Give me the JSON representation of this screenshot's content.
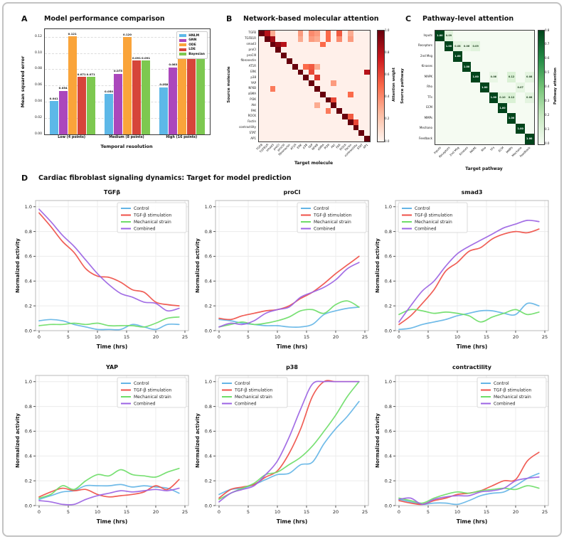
{
  "figure_title": "Multi-panel model figure",
  "chart_data": [
    {
      "id": "model-performance",
      "type": "bar",
      "panel_label": "A",
      "title": "Model performance comparison",
      "xlabel": "Temporal resolution",
      "ylabel": "Mean squared error",
      "ylim": [
        0,
        0.13
      ],
      "yticks": [
        0,
        0.02,
        0.04,
        0.06,
        0.08,
        0.1,
        0.12
      ],
      "grid": "dashed-horizontal",
      "legend_position": "upper-right",
      "categories": [
        "Low (4 points)",
        "Medium (8 points)",
        "High (16 points)"
      ],
      "series": [
        {
          "name": "HNLM",
          "color": "#5db8e8",
          "values": [
            0.041,
            0.05,
            0.058
          ]
        },
        {
          "name": "GNN",
          "color": "#ab47bc",
          "values": [
            0.054,
            0.075,
            0.083
          ]
        },
        {
          "name": "ODE",
          "color": "#faa43a",
          "values": [
            0.121,
            0.12,
            0.121
          ]
        },
        {
          "name": "LDE",
          "color": "#d6453a",
          "values": [
            0.071,
            0.091,
            0.096
          ]
        },
        {
          "name": "Bayesian",
          "color": "#7dc850",
          "values": [
            0.071,
            0.091,
            0.095
          ]
        }
      ]
    },
    {
      "id": "molecular-attention",
      "type": "heatmap",
      "panel_label": "B",
      "title": "Network-based molecular attention",
      "xlabel": "Target molecule",
      "ylabel": "Source molecule",
      "colorbar_label": "Attention weight",
      "colorbar_ticks": [
        1.0,
        0.8,
        0.6,
        0.4,
        0.2,
        0.0
      ],
      "colormap": "Reds",
      "vmax": 1.0,
      "annotate": false,
      "labels": [
        "TGFB",
        "TGFB1R",
        "smad3",
        "proCI",
        "proCIII",
        "fibronectin",
        "AT1R",
        "ERK",
        "p38",
        "YAP",
        "NFKB",
        "aSMA",
        "PI3K",
        "Akt",
        "FAK",
        "ROCK",
        "Factin",
        "contractility",
        "STAT",
        "AP1"
      ],
      "diagonal": 1.0,
      "background_value": 0.02,
      "cells": [
        {
          "r": 0,
          "c": 1,
          "v": 0.8
        },
        {
          "r": 0,
          "c": 2,
          "v": 0.3
        },
        {
          "r": 0,
          "c": 7,
          "v": 0.35
        },
        {
          "r": 0,
          "c": 9,
          "v": 0.4
        },
        {
          "r": 0,
          "c": 10,
          "v": 0.35
        },
        {
          "r": 0,
          "c": 12,
          "v": 0.5
        },
        {
          "r": 0,
          "c": 14,
          "v": 0.55
        },
        {
          "r": 0,
          "c": 16,
          "v": 0.3
        },
        {
          "r": 1,
          "c": 2,
          "v": 0.85
        },
        {
          "r": 1,
          "c": 7,
          "v": 0.3
        },
        {
          "r": 1,
          "c": 9,
          "v": 0.35
        },
        {
          "r": 1,
          "c": 10,
          "v": 0.3
        },
        {
          "r": 1,
          "c": 12,
          "v": 0.5
        },
        {
          "r": 1,
          "c": 14,
          "v": 0.4
        },
        {
          "r": 1,
          "c": 16,
          "v": 0.35
        },
        {
          "r": 2,
          "c": 3,
          "v": 0.9
        },
        {
          "r": 2,
          "c": 4,
          "v": 0.8
        },
        {
          "r": 2,
          "c": 11,
          "v": 0.5
        },
        {
          "r": 6,
          "c": 8,
          "v": 0.5
        },
        {
          "r": 6,
          "c": 9,
          "v": 0.55
        },
        {
          "r": 6,
          "c": 10,
          "v": 0.3
        },
        {
          "r": 7,
          "c": 9,
          "v": 0.6
        },
        {
          "r": 7,
          "c": 19,
          "v": 0.8
        },
        {
          "r": 8,
          "c": 10,
          "v": 0.65
        },
        {
          "r": 9,
          "c": 13,
          "v": 0.35
        },
        {
          "r": 10,
          "c": 2,
          "v": 0.45
        },
        {
          "r": 11,
          "c": 16,
          "v": 0.5
        },
        {
          "r": 12,
          "c": 13,
          "v": 0.6
        },
        {
          "r": 13,
          "c": 10,
          "v": 0.3
        },
        {
          "r": 14,
          "c": 12,
          "v": 0.45
        },
        {
          "r": 15,
          "c": 16,
          "v": 0.55
        },
        {
          "r": 16,
          "c": 17,
          "v": 0.6
        }
      ]
    },
    {
      "id": "pathway-attention",
      "type": "heatmap",
      "panel_label": "C",
      "title": "Pathway-level attention",
      "xlabel": "Target pathway",
      "ylabel": "Source pathway",
      "colorbar_label": "Pathway attention",
      "colorbar_ticks": [
        0.8,
        0.7,
        0.6,
        0.5,
        0.4,
        0.3,
        0.2,
        0.1,
        0.0
      ],
      "colormap": "Greens",
      "vmax": 0.8,
      "annotate": true,
      "labels": [
        "Inputs",
        "Receptors",
        "2nd Msg",
        "Kinases",
        "MAPK",
        "Rho",
        "TFs",
        "ECM",
        "MMPs",
        "Mechano",
        "Feedback"
      ],
      "diagonal": 1.0,
      "diagonal_text": "1.00",
      "background_value": 0.01,
      "cells": [
        {
          "r": 0,
          "c": 1,
          "v": 0.09
        },
        {
          "r": 1,
          "c": 2,
          "v": 0.08
        },
        {
          "r": 1,
          "c": 3,
          "v": 0.06
        },
        {
          "r": 1,
          "c": 4,
          "v": 0.09
        },
        {
          "r": 4,
          "c": 6,
          "v": 0.06
        },
        {
          "r": 4,
          "c": 8,
          "v": 0.12
        },
        {
          "r": 4,
          "c": 10,
          "v": 0.08
        },
        {
          "r": 5,
          "c": 9,
          "v": 0.07
        },
        {
          "r": 6,
          "c": 7,
          "v": 0.1
        },
        {
          "r": 6,
          "c": 8,
          "v": 0.12
        },
        {
          "r": 6,
          "c": 10,
          "v": 0.08
        }
      ]
    },
    {
      "id": "signaling-dynamics",
      "type": "line",
      "panel_label": "D",
      "title": "Cardiac fibroblast signaling dynamics: Target for model prediction",
      "xlabel": "Time (hrs)",
      "ylabel": "Normalized activity",
      "xlim": [
        0,
        25
      ],
      "ylim": [
        0,
        1.05
      ],
      "xticks": [
        0,
        5,
        10,
        15,
        20,
        25
      ],
      "yticks": [
        0,
        0.2,
        0.4,
        0.6,
        0.8,
        1.0
      ],
      "grid": "light",
      "x": [
        0,
        2,
        4,
        6,
        8,
        10,
        12,
        14,
        16,
        18,
        20,
        22,
        24
      ],
      "conditions": [
        {
          "name": "Control",
          "color": "#64b5e6"
        },
        {
          "name": "TGF-β stimulation",
          "color": "#ef5048"
        },
        {
          "name": "Mechanical strain",
          "color": "#6edd68"
        },
        {
          "name": "Combined",
          "color": "#9b63e3"
        }
      ],
      "subplots": [
        {
          "title": "TGFβ",
          "legend": "upper-right",
          "values": [
            [
              0.08,
              0.09,
              0.08,
              0.05,
              0.03,
              0.01,
              0.01,
              0.01,
              0.05,
              0.03,
              0.01,
              0.05,
              0.05
            ],
            [
              0.95,
              0.84,
              0.72,
              0.63,
              0.5,
              0.44,
              0.43,
              0.39,
              0.33,
              0.31,
              0.23,
              0.21,
              0.2
            ],
            [
              0.04,
              0.05,
              0.05,
              0.06,
              0.05,
              0.06,
              0.04,
              0.04,
              0.04,
              0.03,
              0.06,
              0.1,
              0.11
            ],
            [
              0.98,
              0.88,
              0.77,
              0.68,
              0.57,
              0.46,
              0.37,
              0.3,
              0.27,
              0.23,
              0.22,
              0.16,
              0.18
            ]
          ]
        },
        {
          "title": "proCI",
          "legend": "upper-right",
          "values": [
            [
              0.09,
              0.08,
              0.06,
              0.05,
              0.04,
              0.04,
              0.03,
              0.03,
              0.05,
              0.13,
              0.16,
              0.18,
              0.19
            ],
            [
              0.1,
              0.09,
              0.12,
              0.14,
              0.16,
              0.17,
              0.2,
              0.26,
              0.31,
              0.38,
              0.46,
              0.53,
              0.6
            ],
            [
              0.03,
              0.05,
              0.07,
              0.05,
              0.06,
              0.08,
              0.11,
              0.16,
              0.17,
              0.14,
              0.21,
              0.24,
              0.19
            ],
            [
              0.03,
              0.06,
              0.05,
              0.08,
              0.14,
              0.17,
              0.19,
              0.27,
              0.31,
              0.35,
              0.41,
              0.5,
              0.55
            ]
          ]
        },
        {
          "title": "smad3",
          "legend": "upper-left",
          "values": [
            [
              0.01,
              0.02,
              0.05,
              0.07,
              0.09,
              0.12,
              0.14,
              0.16,
              0.16,
              0.14,
              0.13,
              0.22,
              0.2
            ],
            [
              0.05,
              0.12,
              0.22,
              0.33,
              0.48,
              0.55,
              0.64,
              0.67,
              0.74,
              0.78,
              0.8,
              0.79,
              0.82
            ],
            [
              0.13,
              0.17,
              0.16,
              0.14,
              0.15,
              0.14,
              0.12,
              0.07,
              0.11,
              0.14,
              0.17,
              0.13,
              0.15
            ],
            [
              0.07,
              0.2,
              0.32,
              0.4,
              0.52,
              0.62,
              0.68,
              0.73,
              0.78,
              0.83,
              0.86,
              0.89,
              0.88
            ]
          ]
        },
        {
          "title": "YAP",
          "legend": "upper-right",
          "values": [
            [
              0.05,
              0.08,
              0.11,
              0.12,
              0.16,
              0.16,
              0.16,
              0.17,
              0.15,
              0.16,
              0.15,
              0.14,
              0.1
            ],
            [
              0.07,
              0.11,
              0.14,
              0.12,
              0.13,
              0.09,
              0.07,
              0.08,
              0.09,
              0.11,
              0.16,
              0.13,
              0.21
            ],
            [
              0.06,
              0.09,
              0.16,
              0.13,
              0.2,
              0.25,
              0.24,
              0.29,
              0.25,
              0.24,
              0.23,
              0.27,
              0.3
            ],
            [
              0.04,
              0.03,
              0.01,
              0.01,
              0.05,
              0.08,
              0.1,
              0.12,
              0.11,
              0.12,
              0.13,
              0.12,
              0.14
            ]
          ]
        },
        {
          "title": "p38",
          "legend": "upper-left",
          "values": [
            [
              0.09,
              0.13,
              0.14,
              0.17,
              0.21,
              0.25,
              0.26,
              0.33,
              0.35,
              0.5,
              0.62,
              0.72,
              0.84
            ],
            [
              0.06,
              0.13,
              0.15,
              0.17,
              0.23,
              0.28,
              0.42,
              0.62,
              0.88,
              1.0,
              1.0,
              1.0,
              1.0
            ],
            [
              0.05,
              0.1,
              0.14,
              0.18,
              0.25,
              0.27,
              0.33,
              0.39,
              0.48,
              0.6,
              0.73,
              0.88,
              1.0
            ],
            [
              0.03,
              0.1,
              0.13,
              0.16,
              0.25,
              0.36,
              0.55,
              0.78,
              0.98,
              1.0,
              1.0,
              1.0,
              1.0
            ]
          ]
        },
        {
          "title": "contractility",
          "legend": "upper-right",
          "values": [
            [
              0.05,
              0.03,
              0.01,
              0.02,
              0.02,
              0.01,
              0.04,
              0.08,
              0.1,
              0.11,
              0.16,
              0.22,
              0.26
            ],
            [
              0.04,
              0.02,
              0.01,
              0.04,
              0.06,
              0.09,
              0.1,
              0.12,
              0.16,
              0.2,
              0.21,
              0.36,
              0.43
            ],
            [
              0.06,
              0.04,
              0.02,
              0.06,
              0.09,
              0.11,
              0.1,
              0.12,
              0.13,
              0.14,
              0.13,
              0.16,
              0.14
            ],
            [
              0.05,
              0.06,
              0.01,
              0.05,
              0.07,
              0.08,
              0.08,
              0.11,
              0.12,
              0.14,
              0.2,
              0.22,
              0.23
            ]
          ]
        }
      ]
    }
  ]
}
